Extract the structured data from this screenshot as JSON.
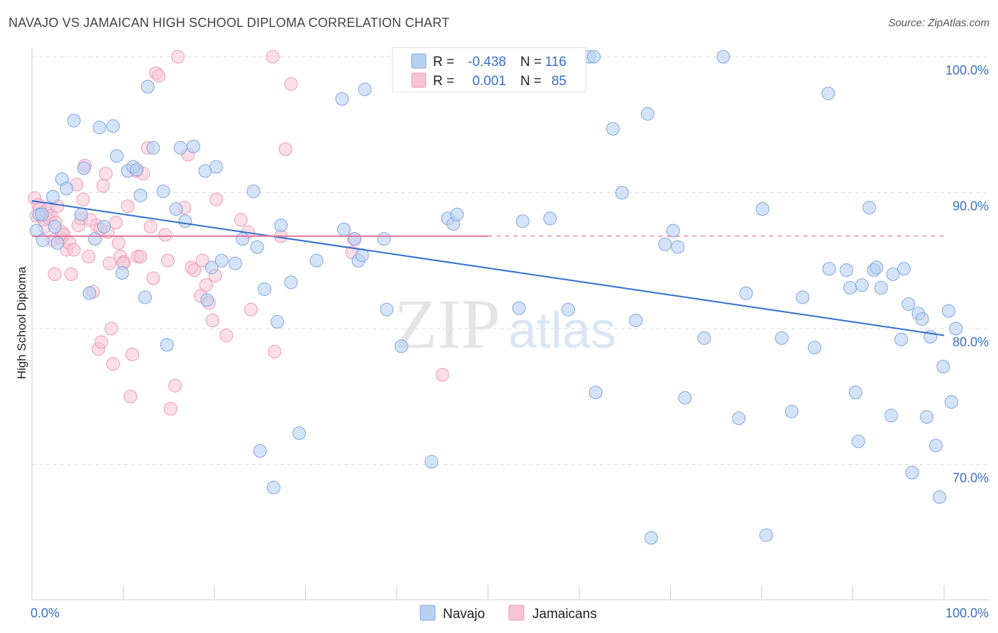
{
  "title": "NAVAJO VS JAMAICAN HIGH SCHOOL DIPLOMA CORRELATION CHART",
  "source": "Source: ZipAtlas.com",
  "watermark": {
    "zip": "ZIP",
    "atlas": "atlas"
  },
  "colors": {
    "navajo_fill": "#b8d0f2",
    "navajo_stroke": "#7fa6e0",
    "navajo_line": "#2f6fd0",
    "jamaican_fill": "#f8c4d5",
    "jamaican_stroke": "#ec9ab5",
    "jamaican_line": "#e8739b",
    "tick_text": "#3a6fc4",
    "grid": "#dddddd"
  },
  "legend": {
    "navajo": {
      "r_label": "R =",
      "r_value": "-0.438",
      "n_label": "N =",
      "n_value": "116"
    },
    "jamaican": {
      "r_label": "R =",
      "r_value": "0.001",
      "n_label": "N =",
      "n_value": "85"
    }
  },
  "bottom_legend": [
    "Navajo",
    "Jamaicans"
  ],
  "chart_data": {
    "type": "scatter",
    "title": "NAVAJO VS JAMAICAN HIGH SCHOOL DIPLOMA CORRELATION CHART",
    "xlabel": "",
    "ylabel": "High School Diploma",
    "xlim": [
      0,
      100
    ],
    "ylim": [
      60.5,
      101.5
    ],
    "x_tick_labels": [
      "0.0%",
      "100.0%"
    ],
    "y_ticks": [
      70,
      80,
      90,
      100
    ],
    "y_tick_labels": [
      "70.0%",
      "80.0%",
      "90.0%",
      "100.0%"
    ],
    "grid": "horizontal dashed",
    "legend_placement": "top-center",
    "series": [
      {
        "name": "Navajo",
        "r": -0.438,
        "n": 116,
        "trend": {
          "x": [
            0,
            100
          ],
          "y": [
            89.4,
            79.5
          ]
        },
        "points": [
          [
            0.5,
            87.2
          ],
          [
            0.8,
            88.4
          ],
          [
            1.2,
            86.5
          ],
          [
            2.3,
            89.7
          ],
          [
            2.5,
            87.5
          ],
          [
            2.8,
            86.3
          ],
          [
            3.3,
            91.0
          ],
          [
            3.8,
            90.3
          ],
          [
            4.6,
            95.3
          ],
          [
            5.4,
            88.4
          ],
          [
            5.7,
            91.8
          ],
          [
            6.3,
            82.6
          ],
          [
            6.9,
            86.6
          ],
          [
            7.4,
            94.8
          ],
          [
            7.9,
            87.5
          ],
          [
            8.9,
            94.9
          ],
          [
            9.3,
            92.7
          ],
          [
            9.9,
            84.1
          ],
          [
            10.5,
            91.6
          ],
          [
            11.1,
            91.9
          ],
          [
            11.5,
            91.7
          ],
          [
            11.9,
            89.8
          ],
          [
            12.4,
            82.3
          ],
          [
            12.7,
            97.8
          ],
          [
            13.3,
            93.3
          ],
          [
            14.4,
            90.1
          ],
          [
            14.8,
            78.8
          ],
          [
            15.8,
            88.8
          ],
          [
            16.3,
            93.3
          ],
          [
            16.8,
            87.9
          ],
          [
            17.7,
            93.4
          ],
          [
            19.0,
            91.6
          ],
          [
            19.2,
            82.1
          ],
          [
            19.7,
            84.5
          ],
          [
            20.2,
            91.9
          ],
          [
            20.8,
            85.0
          ],
          [
            22.3,
            84.8
          ],
          [
            23.1,
            86.6
          ],
          [
            24.3,
            90.1
          ],
          [
            24.7,
            86.0
          ],
          [
            25.0,
            71.0
          ],
          [
            25.5,
            82.9
          ],
          [
            26.5,
            68.3
          ],
          [
            26.9,
            80.5
          ],
          [
            27.3,
            87.6
          ],
          [
            28.4,
            83.4
          ],
          [
            29.3,
            72.3
          ],
          [
            31.2,
            85.0
          ],
          [
            34.0,
            96.9
          ],
          [
            34.2,
            87.3
          ],
          [
            35.4,
            86.6
          ],
          [
            35.8,
            85.0
          ],
          [
            36.2,
            85.4
          ],
          [
            36.5,
            97.6
          ],
          [
            38.6,
            86.6
          ],
          [
            38.9,
            81.4
          ],
          [
            40.5,
            78.7
          ],
          [
            43.8,
            70.2
          ],
          [
            45.6,
            88.1
          ],
          [
            46.2,
            87.7
          ],
          [
            46.6,
            88.4
          ],
          [
            52.4,
            100.0
          ],
          [
            53.4,
            81.5
          ],
          [
            53.8,
            87.9
          ],
          [
            56.8,
            88.1
          ],
          [
            58.8,
            81.4
          ],
          [
            61.1,
            100.0
          ],
          [
            61.6,
            100.0
          ],
          [
            61.8,
            75.3
          ],
          [
            63.7,
            94.7
          ],
          [
            64.7,
            90.0
          ],
          [
            66.2,
            80.6
          ],
          [
            67.5,
            95.8
          ],
          [
            67.9,
            64.6
          ],
          [
            69.4,
            86.2
          ],
          [
            70.3,
            87.2
          ],
          [
            70.8,
            86.0
          ],
          [
            71.6,
            74.9
          ],
          [
            73.7,
            79.3
          ],
          [
            75.8,
            100.0
          ],
          [
            77.5,
            73.4
          ],
          [
            78.3,
            82.6
          ],
          [
            80.1,
            88.8
          ],
          [
            80.5,
            64.8
          ],
          [
            82.2,
            79.3
          ],
          [
            83.3,
            73.9
          ],
          [
            84.5,
            82.3
          ],
          [
            85.8,
            78.6
          ],
          [
            87.3,
            97.3
          ],
          [
            87.4,
            84.4
          ],
          [
            89.3,
            84.3
          ],
          [
            89.7,
            83.0
          ],
          [
            90.3,
            75.3
          ],
          [
            90.6,
            71.7
          ],
          [
            91.0,
            83.2
          ],
          [
            91.8,
            88.9
          ],
          [
            92.3,
            84.3
          ],
          [
            92.6,
            84.5
          ],
          [
            93.1,
            83.0
          ],
          [
            94.2,
            73.6
          ],
          [
            94.4,
            84.0
          ],
          [
            95.3,
            79.2
          ],
          [
            95.6,
            84.4
          ],
          [
            96.1,
            81.8
          ],
          [
            96.5,
            69.4
          ],
          [
            97.2,
            81.1
          ],
          [
            97.6,
            80.7
          ],
          [
            98.1,
            73.5
          ],
          [
            98.5,
            79.4
          ],
          [
            99.1,
            71.4
          ],
          [
            99.5,
            67.6
          ],
          [
            99.9,
            77.2
          ],
          [
            100.5,
            81.3
          ],
          [
            100.8,
            74.6
          ],
          [
            101.3,
            80.0
          ],
          [
            1.1,
            88.4
          ]
        ]
      },
      {
        "name": "Jamaicans",
        "r": 0.001,
        "n": 85,
        "trend": {
          "x": [
            0,
            50
          ],
          "y": [
            86.8,
            86.8
          ]
        },
        "trend_dashed": {
          "x": [
            50,
            100
          ],
          "y": [
            86.8,
            86.8
          ]
        },
        "points": [
          [
            0.3,
            89.6
          ],
          [
            0.5,
            88.3
          ],
          [
            0.7,
            89.1
          ],
          [
            0.9,
            88.8
          ],
          [
            1.1,
            88.4
          ],
          [
            1.3,
            88.0
          ],
          [
            1.4,
            87.5
          ],
          [
            1.6,
            88.5
          ],
          [
            1.8,
            88.9
          ],
          [
            1.9,
            88.1
          ],
          [
            2.1,
            88.3
          ],
          [
            2.3,
            86.5
          ],
          [
            2.5,
            84.0
          ],
          [
            2.6,
            87.8
          ],
          [
            2.8,
            89.0
          ],
          [
            3.2,
            86.7
          ],
          [
            3.3,
            87.1
          ],
          [
            3.5,
            86.9
          ],
          [
            3.8,
            85.8
          ],
          [
            4.1,
            86.3
          ],
          [
            4.3,
            84.0
          ],
          [
            4.6,
            85.8
          ],
          [
            4.9,
            90.6
          ],
          [
            5.1,
            87.6
          ],
          [
            5.4,
            88.1
          ],
          [
            5.6,
            89.5
          ],
          [
            5.8,
            92.0
          ],
          [
            6.2,
            85.3
          ],
          [
            6.4,
            88.0
          ],
          [
            6.7,
            82.7
          ],
          [
            7.1,
            87.6
          ],
          [
            7.3,
            78.5
          ],
          [
            7.6,
            79.0
          ],
          [
            7.8,
            90.5
          ],
          [
            8.1,
            91.4
          ],
          [
            8.3,
            87.1
          ],
          [
            8.5,
            84.8
          ],
          [
            8.7,
            80.0
          ],
          [
            8.9,
            77.4
          ],
          [
            9.2,
            87.8
          ],
          [
            9.5,
            86.3
          ],
          [
            9.7,
            85.3
          ],
          [
            10.1,
            84.9
          ],
          [
            10.5,
            89.0
          ],
          [
            10.8,
            75.0
          ],
          [
            11.0,
            78.1
          ],
          [
            11.4,
            91.6
          ],
          [
            11.6,
            85.3
          ],
          [
            11.9,
            85.3
          ],
          [
            12.2,
            91.4
          ],
          [
            12.7,
            93.3
          ],
          [
            13.0,
            87.5
          ],
          [
            13.3,
            83.7
          ],
          [
            13.6,
            98.8
          ],
          [
            13.9,
            98.6
          ],
          [
            14.6,
            86.9
          ],
          [
            14.9,
            85.0
          ],
          [
            15.2,
            74.1
          ],
          [
            15.7,
            75.8
          ],
          [
            16.0,
            100.0
          ],
          [
            16.7,
            88.9
          ],
          [
            17.1,
            92.8
          ],
          [
            17.5,
            84.5
          ],
          [
            17.8,
            84.3
          ],
          [
            18.5,
            82.4
          ],
          [
            18.7,
            85.0
          ],
          [
            19.1,
            83.2
          ],
          [
            19.4,
            81.9
          ],
          [
            19.8,
            80.6
          ],
          [
            20.1,
            83.9
          ],
          [
            20.2,
            89.5
          ],
          [
            21.3,
            79.5
          ],
          [
            22.9,
            88.0
          ],
          [
            23.7,
            87.1
          ],
          [
            24.0,
            81.4
          ],
          [
            26.4,
            100.0
          ],
          [
            26.6,
            78.3
          ],
          [
            27.3,
            86.8
          ],
          [
            27.8,
            93.2
          ],
          [
            28.4,
            98.0
          ],
          [
            35.1,
            85.6
          ],
          [
            35.3,
            86.6
          ],
          [
            45.0,
            76.6
          ],
          [
            10.0,
            84.8
          ],
          [
            7.5,
            87.3
          ]
        ]
      }
    ]
  }
}
